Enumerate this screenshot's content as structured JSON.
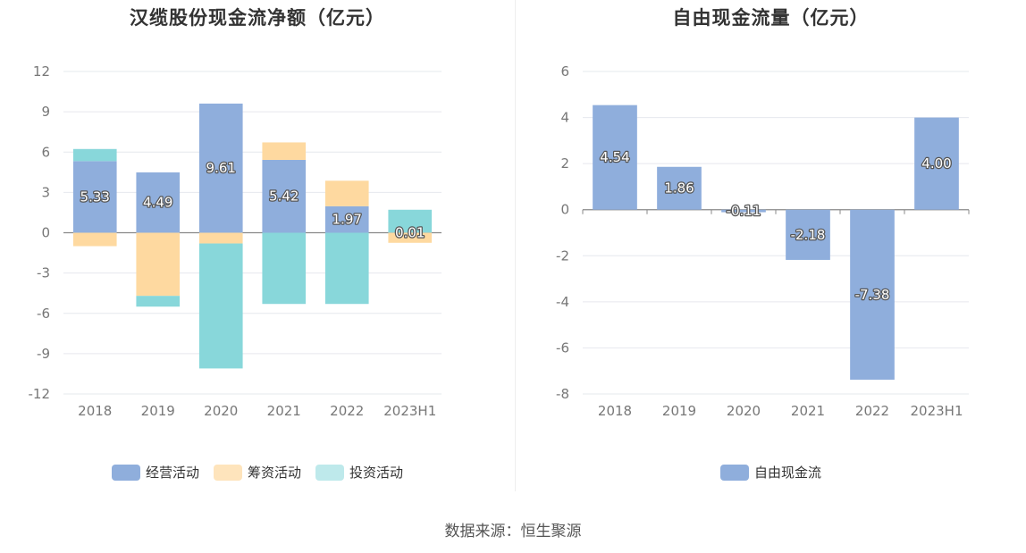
{
  "chart_data": [
    {
      "type": "bar",
      "stacked": true,
      "title": "汉缆股份现金流净额（亿元）",
      "categories": [
        "2018",
        "2019",
        "2020",
        "2021",
        "2022",
        "2023H1"
      ],
      "ylim": [
        -12,
        12
      ],
      "yticks": [
        12,
        9,
        6,
        3,
        0,
        -3,
        -6,
        -9,
        -12
      ],
      "series": [
        {
          "name": "经营活动",
          "color": "#8faedc",
          "values": [
            5.33,
            4.49,
            9.61,
            5.42,
            1.97,
            0.01
          ]
        },
        {
          "name": "筹资活动",
          "color": "#fed9a0",
          "values": [
            -1.0,
            -4.7,
            -0.8,
            1.3,
            1.9,
            -0.75
          ]
        },
        {
          "name": "投资活动",
          "color": "#88d7da",
          "values": [
            0.9,
            -0.8,
            -9.3,
            -5.3,
            -5.3,
            1.7
          ]
        }
      ],
      "data_labels": [
        "5.33",
        "4.49",
        "9.61",
        "5.42",
        "1.97",
        "0.01"
      ],
      "legend": [
        "经营活动",
        "筹资活动",
        "投资活动"
      ]
    },
    {
      "type": "bar",
      "title": "自由现金流量（亿元）",
      "categories": [
        "2018",
        "2019",
        "2020",
        "2021",
        "2022",
        "2023H1"
      ],
      "ylim": [
        -8,
        6
      ],
      "yticks": [
        6,
        4,
        2,
        0,
        -2,
        -4,
        -6,
        -8
      ],
      "series": [
        {
          "name": "自由现金流",
          "color": "#8faedc",
          "values": [
            4.54,
            1.86,
            -0.11,
            -2.18,
            -7.38,
            4.0
          ]
        }
      ],
      "data_labels": [
        "4.54",
        "1.86",
        "-0.11",
        "-2.18",
        "-7.38",
        "4.00"
      ],
      "legend": [
        "自由现金流"
      ]
    }
  ],
  "source": "数据来源：恒生聚源"
}
